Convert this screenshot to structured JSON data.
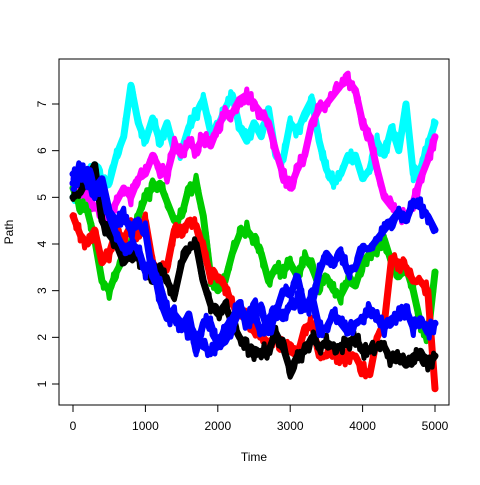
{
  "chart_data": {
    "type": "line",
    "title": "",
    "xlabel": "Time",
    "ylabel": "Path",
    "xlim": [
      0,
      5000
    ],
    "ylim": [
      0.8,
      7.7
    ],
    "x_ticks": [
      0,
      1000,
      2000,
      3000,
      4000,
      5000
    ],
    "y_ticks": [
      1,
      2,
      3,
      4,
      5,
      6,
      7
    ],
    "grid": false,
    "legend": "none",
    "x": [
      0,
      100,
      200,
      300,
      400,
      500,
      600,
      700,
      800,
      900,
      1000,
      1100,
      1200,
      1300,
      1400,
      1500,
      1600,
      1700,
      1800,
      1900,
      2000,
      2100,
      2200,
      2300,
      2400,
      2500,
      2600,
      2700,
      2800,
      2900,
      3000,
      3100,
      3200,
      3300,
      3400,
      3500,
      3600,
      3700,
      3800,
      3900,
      4000,
      4100,
      4200,
      4300,
      4400,
      4500,
      4600,
      4700,
      4800,
      4900,
      5000
    ],
    "series": [
      {
        "color": "#00FFFF",
        "values": [
          5.0,
          4.9,
          5.5,
          5.7,
          5.4,
          5.3,
          5.9,
          6.3,
          7.4,
          6.6,
          6.2,
          6.7,
          6.2,
          6.6,
          6.0,
          6.0,
          6.5,
          6.8,
          7.1,
          6.4,
          6.5,
          6.9,
          7.2,
          6.5,
          6.2,
          6.6,
          6.3,
          6.9,
          5.9,
          5.8,
          6.6,
          6.4,
          6.8,
          7.1,
          6.2,
          5.6,
          5.3,
          5.5,
          5.9,
          5.9,
          5.4,
          5.6,
          6.2,
          5.9,
          6.5,
          6.0,
          7.0,
          5.5,
          5.6,
          6.1,
          6.6
        ]
      },
      {
        "color": "#FF00FF",
        "values": [
          5.3,
          5.1,
          5.0,
          4.8,
          4.7,
          4.6,
          4.9,
          5.2,
          5.0,
          5.4,
          5.5,
          5.9,
          5.6,
          5.5,
          6.1,
          5.9,
          6.2,
          6.0,
          6.3,
          6.1,
          6.5,
          6.8,
          6.8,
          7.1,
          7.2,
          7.0,
          6.8,
          6.6,
          6.0,
          5.5,
          5.2,
          5.6,
          5.9,
          6.6,
          6.9,
          7.0,
          7.2,
          7.4,
          7.5,
          7.3,
          6.6,
          6.3,
          5.6,
          5.0,
          4.8,
          4.7,
          4.5,
          4.9,
          5.4,
          5.8,
          6.3
        ]
      },
      {
        "color": "#00CC00",
        "values": [
          5.2,
          4.8,
          4.7,
          4.1,
          3.2,
          3.0,
          3.4,
          3.7,
          4.0,
          4.6,
          5.0,
          5.2,
          5.3,
          4.9,
          4.5,
          4.6,
          5.2,
          5.3,
          4.6,
          3.3,
          3.0,
          3.2,
          3.8,
          4.2,
          4.3,
          4.1,
          3.8,
          3.2,
          3.5,
          3.4,
          3.6,
          3.3,
          3.7,
          3.5,
          3.1,
          3.3,
          3.0,
          2.9,
          3.2,
          3.1,
          3.6,
          3.8,
          3.9,
          4.1,
          3.6,
          3.3,
          3.5,
          3.0,
          2.3,
          2.0,
          3.4
        ]
      },
      {
        "color": "#FF0000",
        "values": [
          4.6,
          4.2,
          4.0,
          4.3,
          3.6,
          3.8,
          4.3,
          4.1,
          4.4,
          4.2,
          4.5,
          3.6,
          3.4,
          3.5,
          4.3,
          4.2,
          4.5,
          4.4,
          3.9,
          3.3,
          3.3,
          3.1,
          2.7,
          2.6,
          2.4,
          2.2,
          2.0,
          1.9,
          2.0,
          1.8,
          1.7,
          1.6,
          2.2,
          2.3,
          1.6,
          1.6,
          1.7,
          1.5,
          1.6,
          1.6,
          1.3,
          1.2,
          2.0,
          2.3,
          3.7,
          3.6,
          3.5,
          3.2,
          3.2,
          3.0,
          0.9
        ]
      },
      {
        "color": "#000000",
        "values": [
          5.0,
          5.1,
          5.4,
          5.7,
          4.5,
          4.2,
          4.0,
          3.6,
          3.8,
          3.7,
          3.5,
          3.3,
          3.5,
          3.2,
          2.9,
          3.6,
          3.9,
          4.0,
          3.2,
          2.7,
          2.5,
          2.7,
          2.3,
          2.0,
          1.8,
          1.6,
          1.7,
          1.7,
          2.1,
          1.8,
          1.3,
          1.6,
          1.7,
          2.0,
          1.8,
          1.9,
          1.8,
          1.8,
          1.9,
          2.0,
          1.7,
          1.7,
          1.8,
          1.8,
          1.5,
          1.6,
          1.4,
          1.6,
          1.7,
          1.4,
          1.6
        ]
      },
      {
        "color": "#0000FF",
        "values": [
          5.3,
          5.5,
          5.6,
          5.2,
          5.4,
          4.7,
          4.5,
          4.6,
          4.3,
          4.4,
          4.3,
          3.3,
          3.1,
          2.6,
          2.4,
          2.2,
          2.5,
          1.7,
          2.3,
          2.3,
          1.8,
          2.2,
          2.4,
          2.7,
          2.4,
          2.7,
          2.6,
          2.1,
          2.5,
          3.0,
          2.9,
          3.3,
          2.6,
          2.7,
          3.4,
          3.8,
          3.6,
          3.8,
          3.4,
          3.5,
          3.9,
          3.9,
          4.1,
          4.3,
          4.5,
          4.7,
          4.5,
          4.9,
          4.8,
          4.6,
          4.3
        ]
      },
      {
        "color": "#0000FF",
        "values": [
          5.5,
          5.6,
          5.3,
          5.1,
          5.2,
          4.6,
          4.2,
          3.9,
          4.0,
          3.9,
          3.4,
          3.6,
          2.8,
          2.4,
          2.5,
          2.3,
          2.1,
          2.0,
          1.8,
          1.7,
          1.8,
          1.9,
          2.2,
          2.6,
          2.3,
          2.5,
          2.1,
          2.4,
          2.6,
          2.4,
          2.7,
          2.8,
          2.6,
          2.9,
          2.2,
          2.2,
          2.5,
          2.3,
          2.1,
          2.3,
          2.4,
          2.6,
          2.4,
          2.2,
          2.4,
          2.5,
          2.6,
          2.2,
          2.4,
          2.1,
          2.3
        ]
      }
    ]
  }
}
